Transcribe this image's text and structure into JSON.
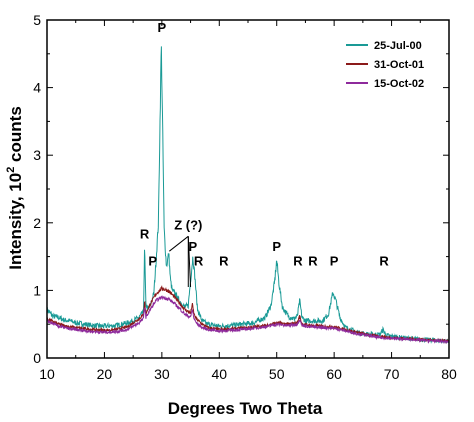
{
  "chart_data": {
    "type": "line",
    "xlabel": "Degrees Two Theta",
    "ylabel_main": "Intensity, 10",
    "ylabel_sup": "2",
    "ylabel_tail": " counts",
    "xlim": [
      10,
      80
    ],
    "ylim": [
      0,
      5
    ],
    "xticks": [
      "10",
      "20",
      "30",
      "40",
      "50",
      "60",
      "70",
      "80"
    ],
    "yticks": [
      "0",
      "1",
      "2",
      "3",
      "4",
      "5"
    ],
    "grid": false,
    "legend_position": "top-right",
    "series": [
      {
        "name": "25-Jul-00",
        "color": "#1a9a96",
        "x": [
          10,
          11,
          12,
          13,
          14,
          15,
          16,
          18,
          20,
          22,
          24,
          25,
          26,
          26.8,
          27,
          27.2,
          27.6,
          28,
          28.6,
          29,
          29.4,
          29.7,
          29.9,
          30.1,
          30.4,
          30.8,
          31.2,
          31.5,
          31.8,
          32.3,
          33,
          34,
          34.6,
          35,
          35.4,
          35.7,
          36.2,
          37,
          38,
          40,
          42,
          44,
          46,
          48,
          49,
          49.6,
          50,
          50.4,
          51,
          52,
          53,
          53.6,
          54,
          54.4,
          55,
          56,
          57,
          58,
          59,
          59.5,
          59.8,
          60.3,
          61,
          62,
          64,
          66,
          68,
          68.5,
          69,
          70,
          72,
          74,
          76,
          78,
          80
        ],
        "y": [
          0.72,
          0.62,
          0.6,
          0.56,
          0.55,
          0.52,
          0.51,
          0.48,
          0.47,
          0.48,
          0.52,
          0.55,
          0.6,
          0.68,
          1.65,
          0.8,
          0.72,
          0.78,
          0.95,
          1.45,
          2.0,
          3.6,
          4.65,
          3.6,
          1.9,
          1.35,
          1.55,
          1.15,
          1.0,
          0.95,
          0.85,
          0.75,
          0.78,
          1.15,
          1.5,
          1.25,
          0.72,
          0.55,
          0.5,
          0.47,
          0.48,
          0.5,
          0.52,
          0.6,
          0.78,
          1.1,
          1.45,
          1.1,
          0.75,
          0.62,
          0.58,
          0.62,
          0.85,
          0.6,
          0.55,
          0.55,
          0.55,
          0.55,
          0.65,
          0.85,
          0.97,
          0.85,
          0.6,
          0.45,
          0.38,
          0.35,
          0.35,
          0.42,
          0.34,
          0.32,
          0.3,
          0.28,
          0.27,
          0.26,
          0.25
        ]
      },
      {
        "name": "31-Oct-01",
        "color": "#8b1a1a",
        "x": [
          10,
          12,
          14,
          16,
          18,
          20,
          22,
          24,
          26,
          26.8,
          27,
          27.2,
          28,
          29,
          30,
          31,
          32,
          33,
          34,
          35,
          35.3,
          35.6,
          36,
          37,
          38,
          40,
          42,
          45,
          48,
          50,
          52,
          53.6,
          54,
          54.4,
          56,
          58,
          60,
          62,
          64,
          66,
          68,
          70,
          72,
          74,
          76,
          78,
          80
        ],
        "y": [
          0.58,
          0.5,
          0.46,
          0.44,
          0.42,
          0.41,
          0.42,
          0.46,
          0.58,
          0.64,
          0.85,
          0.66,
          0.8,
          0.95,
          1.03,
          1.0,
          0.92,
          0.82,
          0.72,
          0.66,
          0.8,
          0.65,
          0.58,
          0.5,
          0.45,
          0.42,
          0.43,
          0.45,
          0.48,
          0.52,
          0.5,
          0.52,
          0.62,
          0.5,
          0.48,
          0.47,
          0.46,
          0.42,
          0.38,
          0.34,
          0.32,
          0.3,
          0.29,
          0.28,
          0.27,
          0.26,
          0.25
        ]
      },
      {
        "name": "15-Oct-02",
        "color": "#8e2a9c",
        "x": [
          10,
          12,
          14,
          16,
          18,
          20,
          22,
          24,
          26,
          26.8,
          27,
          27.2,
          28,
          29,
          30,
          31,
          32,
          33,
          34,
          35,
          35.3,
          35.6,
          36,
          37,
          38,
          40,
          42,
          45,
          48,
          50,
          52,
          53.6,
          54,
          54.4,
          56,
          58,
          60,
          62,
          64,
          66,
          68,
          70,
          72,
          74,
          76,
          78,
          80
        ],
        "y": [
          0.55,
          0.47,
          0.43,
          0.41,
          0.39,
          0.38,
          0.39,
          0.42,
          0.52,
          0.58,
          0.78,
          0.6,
          0.72,
          0.85,
          0.9,
          0.88,
          0.82,
          0.74,
          0.65,
          0.6,
          0.72,
          0.58,
          0.52,
          0.45,
          0.42,
          0.4,
          0.41,
          0.43,
          0.46,
          0.5,
          0.48,
          0.5,
          0.58,
          0.48,
          0.46,
          0.45,
          0.44,
          0.4,
          0.36,
          0.33,
          0.3,
          0.29,
          0.28,
          0.27,
          0.26,
          0.25,
          0.24
        ]
      }
    ],
    "annotations": [
      {
        "text": "P",
        "x": 30.0,
        "y": 4.82
      },
      {
        "text": "R",
        "x": 27.0,
        "y": 1.77
      },
      {
        "text": "P",
        "x": 28.4,
        "y": 1.37
      },
      {
        "text": "Z (?)",
        "x": 34.6,
        "y": 1.9
      },
      {
        "text": "P",
        "x": 35.4,
        "y": 1.58
      },
      {
        "text": "R",
        "x": 36.4,
        "y": 1.37
      },
      {
        "text": "R",
        "x": 40.8,
        "y": 1.37
      },
      {
        "text": "P",
        "x": 50.0,
        "y": 1.58
      },
      {
        "text": "R",
        "x": 53.7,
        "y": 1.37
      },
      {
        "text": "R",
        "x": 56.3,
        "y": 1.37
      },
      {
        "text": "P",
        "x": 60.0,
        "y": 1.37
      },
      {
        "text": "R",
        "x": 68.7,
        "y": 1.37
      }
    ],
    "arrows": [
      {
        "from": [
          34.6,
          1.8
        ],
        "to": [
          31.3,
          1.58
        ]
      },
      {
        "from": [
          34.6,
          1.8
        ],
        "to": [
          34.6,
          1.05
        ]
      },
      {
        "from": [
          34.6,
          1.8
        ],
        "to": [
          35.0,
          1.05
        ]
      }
    ]
  }
}
